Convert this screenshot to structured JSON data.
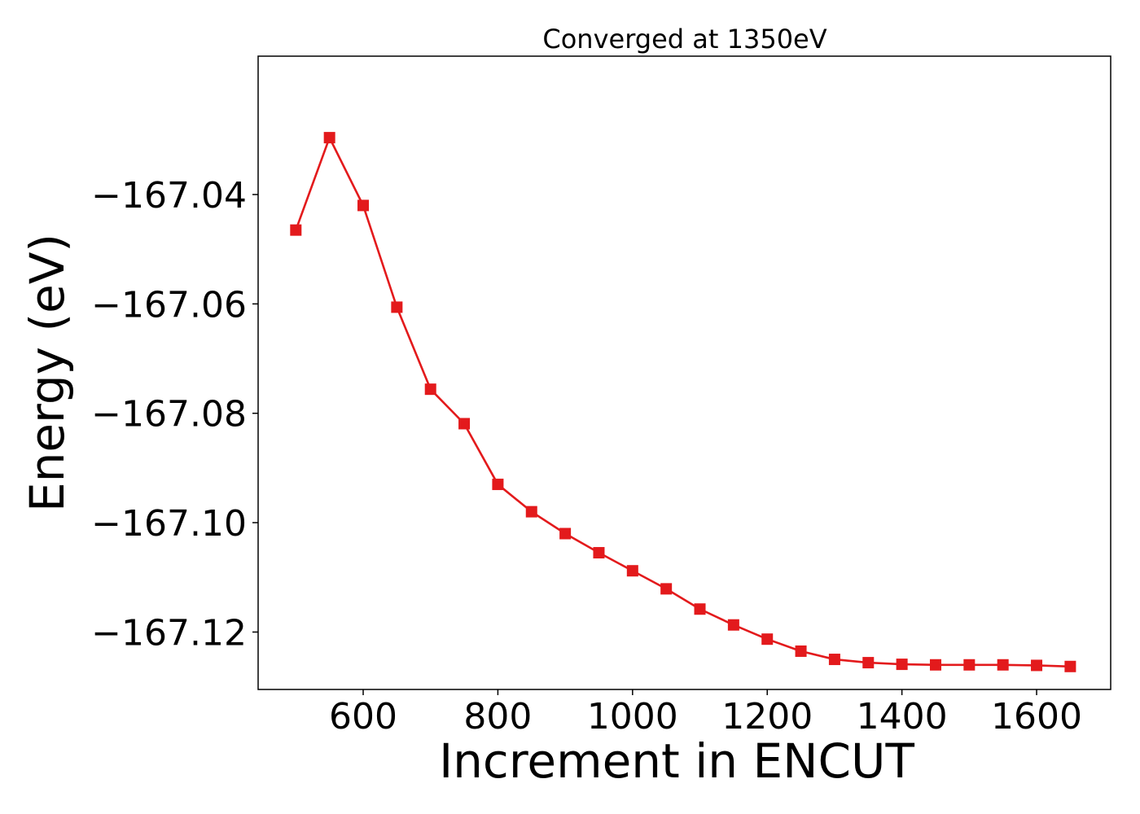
{
  "chart_data": {
    "type": "line",
    "title": "Converged at 1350eV",
    "xlabel": "Increment in ENCUT",
    "ylabel": "Energy (eV)",
    "xlim": [
      444,
      1710
    ],
    "ylim": [
      -167.1305,
      -167.0147
    ],
    "x_ticks": [
      600,
      800,
      1000,
      1200,
      1400,
      1600
    ],
    "x_tick_labels": [
      "600",
      "800",
      "1000",
      "1200",
      "1400",
      "1600"
    ],
    "y_ticks": [
      -167.04,
      -167.06,
      -167.08,
      -167.1,
      -167.12
    ],
    "y_tick_labels": [
      "−167.04",
      "−167.06",
      "−167.08",
      "−167.10",
      "−167.12"
    ],
    "grid": false,
    "legend": false,
    "line_color": "#e31a1c",
    "marker": "square",
    "x": [
      500,
      550,
      600,
      650,
      700,
      750,
      800,
      850,
      900,
      950,
      1000,
      1050,
      1100,
      1150,
      1200,
      1250,
      1300,
      1350,
      1400,
      1450,
      1500,
      1550,
      1600,
      1650
    ],
    "y": [
      -167.0465,
      -167.0296,
      -167.042,
      -167.0606,
      -167.0756,
      -167.0819,
      -167.093,
      -167.098,
      -167.102,
      -167.1055,
      -167.1088,
      -167.1121,
      -167.1158,
      -167.1187,
      -167.1213,
      -167.1235,
      -167.125,
      -167.1256,
      -167.1259,
      -167.126,
      -167.126,
      -167.126,
      -167.1261,
      -167.1263
    ]
  }
}
